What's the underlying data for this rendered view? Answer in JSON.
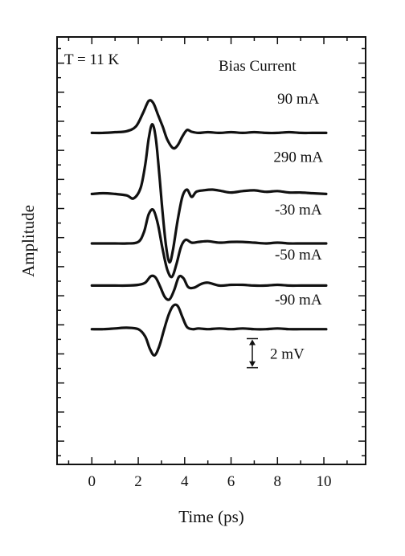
{
  "chart_data": {
    "type": "line",
    "title": "",
    "xlabel": "Time (ps)",
    "ylabel": "Amplitude",
    "xlim": [
      -1.5,
      11.8
    ],
    "x_ticks": [
      0,
      2,
      4,
      6,
      8,
      10
    ],
    "x_tick_labels": [
      "0",
      "2",
      "4",
      "6",
      "8",
      "10"
    ],
    "y_units": "mV",
    "ylim": [
      -13.6,
      15.8
    ],
    "grid": false,
    "annotations": {
      "temperature": "T = 11 K",
      "legend_title": "Bias Current",
      "scale_bar_label": "2 mV",
      "scale_bar_value_mV": 2
    },
    "series": [
      {
        "name": "90 mA",
        "offset_mV": 9.2,
        "label_x": 8.9,
        "label_y_mV": 11.2,
        "x": [
          0,
          0.5,
          1,
          1.5,
          1.9,
          2.2,
          2.45,
          2.65,
          2.85,
          3.05,
          3.25,
          3.5,
          3.7,
          3.9,
          4.1,
          4.3,
          4.6,
          5,
          5.5,
          6,
          6.5,
          7,
          7.5,
          8,
          8.5,
          9,
          9.5,
          10.1
        ],
        "y": [
          0,
          0,
          0.05,
          0.12,
          0.45,
          1.35,
          2.2,
          2.05,
          1.25,
          0.45,
          -0.45,
          -1.05,
          -0.85,
          -0.25,
          0.2,
          0.08,
          0,
          0.05,
          0,
          0.05,
          0,
          0.05,
          0,
          0,
          0.05,
          0,
          0,
          0
        ]
      },
      {
        "name": "290 mA",
        "offset_mV": 5.0,
        "label_x": 8.9,
        "label_y_mV": 7.2,
        "x": [
          0,
          0.5,
          1,
          1.5,
          1.8,
          2.1,
          2.3,
          2.45,
          2.6,
          2.75,
          2.9,
          3.05,
          3.2,
          3.35,
          3.5,
          3.7,
          3.9,
          4.1,
          4.3,
          4.5,
          4.8,
          5.2,
          5.6,
          6,
          6.5,
          7,
          7.5,
          8,
          8.5,
          9,
          9.5,
          10.1
        ],
        "y": [
          0,
          0.05,
          0,
          -0.1,
          -0.3,
          0.4,
          2.0,
          3.8,
          4.8,
          3.9,
          1.5,
          -1.3,
          -3.6,
          -4.7,
          -3.8,
          -1.8,
          -0.2,
          0.3,
          -0.2,
          0.15,
          0.25,
          0.3,
          0.2,
          0.1,
          0.2,
          0.25,
          0.15,
          0.2,
          0.1,
          0.1,
          0.05,
          0
        ]
      },
      {
        "name": "-30 mA",
        "offset_mV": 1.6,
        "label_x": 8.9,
        "label_y_mV": 3.6,
        "x": [
          0,
          0.5,
          1,
          1.5,
          2,
          2.25,
          2.45,
          2.65,
          2.85,
          3.05,
          3.25,
          3.45,
          3.65,
          3.85,
          4.05,
          4.3,
          4.6,
          5,
          5.5,
          6,
          6.5,
          7,
          7.5,
          8,
          8.5,
          9,
          9.5,
          10.1
        ],
        "y": [
          0,
          0,
          0,
          0,
          0.1,
          0.8,
          2.0,
          2.3,
          1.3,
          -0.4,
          -1.8,
          -2.3,
          -1.4,
          -0.2,
          0.25,
          0.05,
          0.1,
          0.15,
          0.05,
          0.1,
          0.1,
          0.05,
          0,
          0.05,
          0,
          0,
          0,
          0
        ]
      },
      {
        "name": "-50 mA",
        "offset_mV": -1.3,
        "label_x": 8.9,
        "label_y_mV": 0.5,
        "x": [
          0,
          0.5,
          1,
          1.5,
          2,
          2.3,
          2.55,
          2.75,
          2.95,
          3.15,
          3.35,
          3.55,
          3.75,
          3.95,
          4.15,
          4.4,
          4.7,
          5,
          5.5,
          6,
          6.5,
          7,
          7.5,
          8,
          8.5,
          9,
          9.5,
          10.1
        ],
        "y": [
          0,
          0,
          0,
          0,
          0.05,
          0.2,
          0.65,
          0.55,
          -0.1,
          -0.8,
          -0.95,
          -0.3,
          0.6,
          0.5,
          -0.1,
          -0.15,
          0.1,
          0.2,
          0,
          0.05,
          0.05,
          0,
          0,
          0.05,
          0,
          0,
          0,
          0
        ]
      },
      {
        "name": "-90 mA",
        "offset_mV": -4.3,
        "label_x": 8.9,
        "label_y_mV": -2.6,
        "x": [
          0,
          0.5,
          1,
          1.5,
          2,
          2.3,
          2.5,
          2.7,
          2.9,
          3.1,
          3.3,
          3.5,
          3.7,
          3.9,
          4.1,
          4.35,
          4.6,
          5,
          5.5,
          6,
          6.5,
          7,
          7.5,
          8,
          8.5,
          9,
          9.5,
          10.1
        ],
        "y": [
          0,
          0,
          0.05,
          0.1,
          0,
          -0.5,
          -1.35,
          -1.8,
          -1.2,
          -0.1,
          0.95,
          1.6,
          1.6,
          0.85,
          0.15,
          0,
          0.05,
          0,
          0.05,
          0,
          0.05,
          0,
          0,
          0.05,
          0,
          0,
          0,
          0
        ]
      }
    ]
  }
}
